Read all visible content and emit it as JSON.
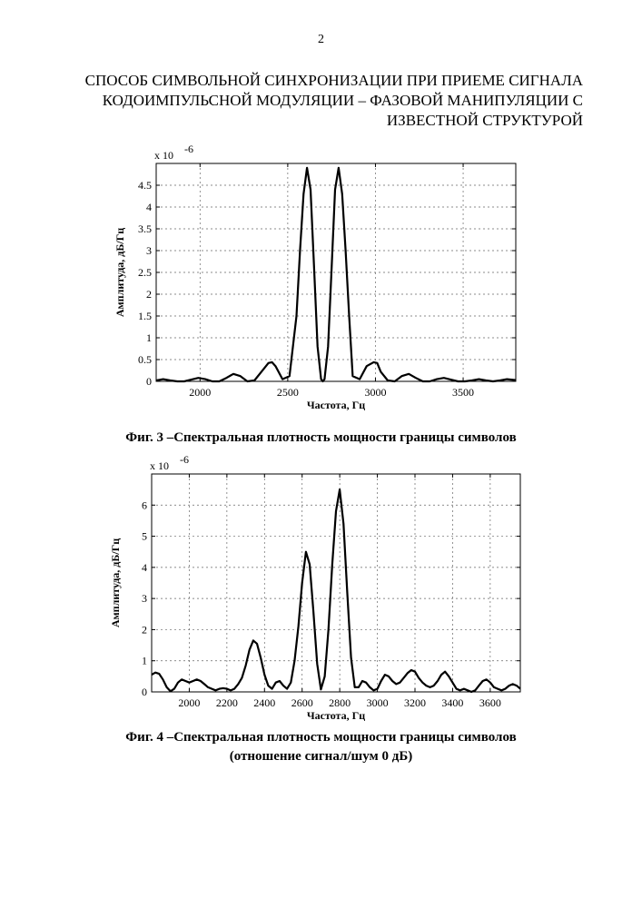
{
  "page": {
    "number": "2",
    "title_lines": [
      "СПОСОБ СИМВОЛЬНОЙ СИНХРОНИЗАЦИИ ПРИ ПРИЕМЕ СИГНАЛА",
      "КОДОИМПУЛЬСНОЙ МОДУЛЯЦИИ – ФАЗОВОЙ МАНИПУЛЯЦИИ С",
      "ИЗВЕСТНОЙ СТРУКТУРОЙ"
    ]
  },
  "figures": [
    {
      "caption": "Фиг. 3 –Спектральная плотность мощности границы символов",
      "caption_line2": ""
    },
    {
      "caption": "Фиг. 4 –Спектральная плотность мощности границы символов",
      "caption_line2": "(отношение сигнал/шум 0 дБ)"
    }
  ],
  "chart_data": [
    {
      "type": "line",
      "xlabel": "Частота, Гц",
      "ylabel": "Амплитуда, дБ/Гц",
      "scale_label": "x 10",
      "scale_exponent": "-6",
      "xlim": [
        1750,
        3800
      ],
      "ylim": [
        0,
        5
      ],
      "xticks": [
        2000,
        2500,
        3000,
        3500
      ],
      "yticks": [
        0,
        0.5,
        1,
        1.5,
        2,
        2.5,
        3,
        3.5,
        4,
        4.5
      ],
      "ytick_labels": [
        "0",
        "0.5",
        "1",
        "1.5",
        "2",
        "2.5",
        "3",
        "3.5",
        "4",
        "4.5"
      ],
      "grid": true,
      "series": [
        {
          "x": [
            1750,
            1790,
            1830,
            1870,
            1910,
            1950,
            1990,
            2030,
            2070,
            2110,
            2150,
            2190,
            2230,
            2270,
            2310,
            2350,
            2390,
            2410,
            2430,
            2470,
            2510,
            2550,
            2570,
            2590,
            2610,
            2630,
            2650,
            2670,
            2690,
            2700,
            2710,
            2730,
            2750,
            2770,
            2790,
            2810,
            2830,
            2850,
            2870,
            2910,
            2950,
            2990,
            3010,
            3030,
            3070,
            3110,
            3150,
            3190,
            3230,
            3270,
            3310,
            3350,
            3390,
            3430,
            3470,
            3510,
            3550,
            3590,
            3630,
            3670,
            3710,
            3750,
            3800
          ],
          "y": [
            0.02,
            0.05,
            0.02,
            0.0,
            0.0,
            0.04,
            0.08,
            0.05,
            0.0,
            0.0,
            0.08,
            0.17,
            0.12,
            0.0,
            0.02,
            0.22,
            0.42,
            0.44,
            0.35,
            0.05,
            0.12,
            1.5,
            3.0,
            4.3,
            4.9,
            4.4,
            2.6,
            0.8,
            0.05,
            0.0,
            0.05,
            0.8,
            2.6,
            4.4,
            4.9,
            4.3,
            3.0,
            1.5,
            0.12,
            0.05,
            0.35,
            0.44,
            0.42,
            0.22,
            0.02,
            0.0,
            0.12,
            0.17,
            0.08,
            0.0,
            0.0,
            0.05,
            0.08,
            0.04,
            0.0,
            0.0,
            0.02,
            0.05,
            0.02,
            0.0,
            0.02,
            0.05,
            0.03
          ]
        }
      ]
    },
    {
      "type": "line",
      "xlabel": "Частота, Гц",
      "ylabel": "Амплитуда, дБ/Гц",
      "scale_label": "x 10",
      "scale_exponent": "-6",
      "xlim": [
        1800,
        3760
      ],
      "ylim": [
        0,
        7
      ],
      "xticks": [
        2000,
        2200,
        2400,
        2600,
        2800,
        3000,
        3200,
        3400,
        3600
      ],
      "yticks": [
        0,
        1,
        2,
        3,
        4,
        5,
        6
      ],
      "ytick_labels": [
        "0",
        "1",
        "2",
        "3",
        "4",
        "5",
        "6"
      ],
      "grid": true,
      "series": [
        {
          "x": [
            1800,
            1820,
            1840,
            1860,
            1880,
            1900,
            1920,
            1940,
            1960,
            1980,
            2000,
            2020,
            2040,
            2060,
            2080,
            2100,
            2120,
            2140,
            2160,
            2180,
            2200,
            2220,
            2240,
            2260,
            2280,
            2300,
            2320,
            2340,
            2360,
            2380,
            2400,
            2420,
            2440,
            2460,
            2480,
            2500,
            2520,
            2540,
            2560,
            2580,
            2600,
            2620,
            2640,
            2660,
            2680,
            2700,
            2720,
            2740,
            2760,
            2780,
            2800,
            2820,
            2840,
            2860,
            2880,
            2900,
            2920,
            2940,
            2960,
            2980,
            3000,
            3020,
            3040,
            3060,
            3080,
            3100,
            3120,
            3140,
            3160,
            3180,
            3200,
            3220,
            3240,
            3260,
            3280,
            3300,
            3320,
            3340,
            3360,
            3380,
            3400,
            3420,
            3440,
            3460,
            3480,
            3500,
            3520,
            3540,
            3560,
            3580,
            3600,
            3620,
            3640,
            3660,
            3680,
            3700,
            3720,
            3740,
            3760
          ],
          "y": [
            0.55,
            0.62,
            0.58,
            0.4,
            0.15,
            0.02,
            0.1,
            0.3,
            0.4,
            0.35,
            0.3,
            0.35,
            0.4,
            0.35,
            0.25,
            0.15,
            0.1,
            0.05,
            0.1,
            0.12,
            0.1,
            0.05,
            0.1,
            0.25,
            0.45,
            0.85,
            1.35,
            1.65,
            1.55,
            1.1,
            0.55,
            0.2,
            0.1,
            0.3,
            0.35,
            0.2,
            0.1,
            0.3,
            1.0,
            2.1,
            3.5,
            4.5,
            4.1,
            2.6,
            0.9,
            0.08,
            0.5,
            2.0,
            4.1,
            5.8,
            6.5,
            5.4,
            3.2,
            1.1,
            0.15,
            0.15,
            0.35,
            0.3,
            0.15,
            0.05,
            0.1,
            0.35,
            0.55,
            0.5,
            0.35,
            0.25,
            0.3,
            0.45,
            0.6,
            0.7,
            0.65,
            0.45,
            0.3,
            0.2,
            0.15,
            0.2,
            0.35,
            0.55,
            0.65,
            0.5,
            0.3,
            0.1,
            0.05,
            0.1,
            0.05,
            0.0,
            0.05,
            0.2,
            0.35,
            0.4,
            0.3,
            0.15,
            0.1,
            0.05,
            0.1,
            0.2,
            0.25,
            0.2,
            0.1
          ]
        }
      ]
    }
  ]
}
